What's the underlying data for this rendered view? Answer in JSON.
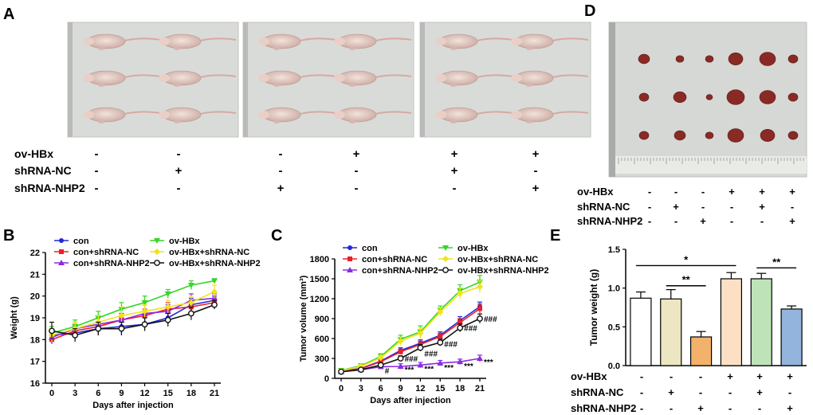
{
  "panels": {
    "a": {
      "letter": "A",
      "row_labels": [
        "ov-HBx",
        "shRNA-NC",
        "shRNA-NHP2"
      ],
      "columns": [
        [
          "-",
          "-",
          "-"
        ],
        [
          "-",
          "+",
          "-"
        ],
        [
          "-",
          "-",
          "+"
        ],
        [
          "+",
          "-",
          "-"
        ],
        [
          "+",
          "+",
          "-"
        ],
        [
          "+",
          "-",
          "+"
        ]
      ]
    },
    "d": {
      "letter": "D",
      "row_labels": [
        "ov-HBx",
        "shRNA-NC",
        "shRNA-NHP2"
      ],
      "columns": [
        [
          "-",
          "-",
          "-"
        ],
        [
          "-",
          "+",
          "-"
        ],
        [
          "-",
          "-",
          "+"
        ],
        [
          "+",
          "-",
          "-"
        ],
        [
          "+",
          "+",
          "-"
        ],
        [
          "+",
          "-",
          "+"
        ]
      ]
    },
    "b": {
      "letter": "B"
    },
    "c": {
      "letter": "C"
    },
    "e": {
      "letter": "E",
      "row_labels": [
        "ov-HBx",
        "shRNA-NC",
        "shRNA-NHP2"
      ],
      "columns": [
        [
          "-",
          "-",
          "-"
        ],
        [
          "-",
          "+",
          "-"
        ],
        [
          "-",
          "-",
          "+"
        ],
        [
          "+",
          "-",
          "-"
        ],
        [
          "+",
          "+",
          "-"
        ],
        [
          "+",
          "-",
          "+"
        ]
      ]
    }
  },
  "colors": {
    "con": "#1f2bd6",
    "con_shnc": "#e8202a",
    "con_shnhp2": "#8a2be2",
    "ovhbx": "#35d626",
    "ovhbx_shnc": "#f2e21a",
    "ovhbx_shnhp2": "#111111",
    "bar_fills": [
      "#ffffff",
      "#ece7c2",
      "#f2b26b",
      "#fde0c4",
      "#bfe3b8",
      "#93b4dc"
    ],
    "photo_bg": "#d9dbd8",
    "tumor": "#8a2a25"
  },
  "chart_data": [
    {
      "id": "B",
      "type": "line",
      "title": "",
      "xlabel": "Days after injection",
      "ylabel": "Weight (g)",
      "x": [
        0,
        3,
        6,
        9,
        12,
        15,
        18,
        21
      ],
      "xticks": [
        "0",
        "3",
        "6",
        "9",
        "12",
        "15",
        "18",
        "21"
      ],
      "yticks": [
        "16",
        "17",
        "18",
        "19",
        "20",
        "21",
        "22"
      ],
      "ylim": [
        16,
        22
      ],
      "legend": "top",
      "series": [
        {
          "key": "con",
          "name": "con",
          "values": [
            18.2,
            18.3,
            18.5,
            18.6,
            18.7,
            19.0,
            19.6,
            19.8
          ],
          "err": [
            0.3,
            0.3,
            0.3,
            0.4,
            0.3,
            0.3,
            0.3,
            0.2
          ]
        },
        {
          "key": "con_shnc",
          "name": "con+shRNA-NC",
          "values": [
            18.0,
            18.4,
            18.6,
            18.9,
            19.1,
            19.4,
            19.5,
            19.7
          ],
          "err": [
            0.2,
            0.3,
            0.4,
            0.3,
            0.3,
            0.3,
            0.3,
            0.2
          ]
        },
        {
          "key": "con_shnhp2",
          "name": "con+shRNA-NHP2",
          "values": [
            18.1,
            18.5,
            18.7,
            18.9,
            19.2,
            19.3,
            19.8,
            19.9
          ],
          "err": [
            0.3,
            0.3,
            0.4,
            0.3,
            0.4,
            0.3,
            0.3,
            0.2
          ]
        },
        {
          "key": "ovhbx",
          "name": "ov-HBx",
          "values": [
            18.3,
            18.6,
            19.0,
            19.4,
            19.7,
            20.1,
            20.5,
            20.7
          ],
          "err": [
            0.3,
            0.3,
            0.3,
            0.3,
            0.3,
            0.2,
            0.2,
            0.1
          ]
        },
        {
          "key": "ovhbx_shnc",
          "name": "ov-HBx+shRNA-NC",
          "values": [
            18.2,
            18.5,
            18.8,
            19.1,
            19.3,
            19.5,
            19.7,
            20.2
          ],
          "err": [
            0.3,
            0.3,
            0.3,
            0.4,
            0.3,
            0.3,
            0.3,
            0.3
          ]
        },
        {
          "key": "ovhbx_shnhp2",
          "name": "ov-HBx+shRNA-NHP2",
          "values": [
            18.4,
            18.2,
            18.5,
            18.5,
            18.7,
            18.9,
            19.2,
            19.6
          ],
          "err": [
            0.4,
            0.3,
            0.3,
            0.3,
            0.3,
            0.3,
            0.3,
            0.2
          ]
        }
      ]
    },
    {
      "id": "C",
      "type": "line",
      "title": "",
      "xlabel": "Days after injection",
      "ylabel": "Tumor volume (mm³)",
      "x": [
        0,
        3,
        6,
        9,
        12,
        15,
        18,
        21
      ],
      "xticks": [
        "0",
        "3",
        "6",
        "9",
        "12",
        "15",
        "18",
        "21"
      ],
      "yticks": [
        "0",
        "300",
        "600",
        "900",
        "1200",
        "1500",
        "1800"
      ],
      "ylim": [
        0,
        1800
      ],
      "legend": "top",
      "series": [
        {
          "key": "con",
          "name": "con",
          "values": [
            110,
            150,
            260,
            420,
            530,
            650,
            870,
            1080
          ],
          "err": [
            20,
            20,
            30,
            40,
            50,
            50,
            60,
            70
          ]
        },
        {
          "key": "con_shnc",
          "name": "con+shRNA-NC",
          "values": [
            105,
            145,
            250,
            400,
            510,
            630,
            840,
            1050
          ],
          "err": [
            20,
            20,
            30,
            40,
            50,
            50,
            60,
            70
          ]
        },
        {
          "key": "con_shnhp2",
          "name": "con+shRNA-NHP2",
          "values": [
            100,
            130,
            175,
            180,
            200,
            230,
            250,
            300
          ],
          "err": [
            15,
            20,
            25,
            40,
            40,
            40,
            40,
            50
          ]
        },
        {
          "key": "ovhbx",
          "name": "ov-HBx",
          "values": [
            120,
            190,
            330,
            590,
            700,
            1030,
            1320,
            1450
          ],
          "err": [
            20,
            25,
            40,
            60,
            90,
            60,
            90,
            100
          ]
        },
        {
          "key": "ovhbx_shnc",
          "name": "ov-HBx+shRNA-NC",
          "values": [
            115,
            180,
            310,
            560,
            680,
            1000,
            1280,
            1380
          ],
          "err": [
            20,
            25,
            40,
            60,
            80,
            60,
            80,
            90
          ]
        },
        {
          "key": "ovhbx_shnhp2",
          "name": "ov-HBx+shRNA-NHP2",
          "values": [
            100,
            130,
            200,
            300,
            460,
            540,
            760,
            900
          ],
          "err": [
            20,
            20,
            30,
            40,
            50,
            50,
            60,
            70
          ]
        }
      ],
      "annotations": [
        {
          "x": 6,
          "y": 120,
          "text": "#"
        },
        {
          "x": 9,
          "y": 300,
          "text": "###"
        },
        {
          "x": 9,
          "y": 140,
          "text": "***"
        },
        {
          "x": 12,
          "y": 380,
          "text": "###"
        },
        {
          "x": 12,
          "y": 150,
          "text": "***"
        },
        {
          "x": 15,
          "y": 520,
          "text": "###"
        },
        {
          "x": 15,
          "y": 170,
          "text": "***"
        },
        {
          "x": 18,
          "y": 760,
          "text": "###"
        },
        {
          "x": 18,
          "y": 190,
          "text": "***"
        },
        {
          "x": 21,
          "y": 900,
          "text": "###"
        },
        {
          "x": 21,
          "y": 250,
          "text": "***"
        }
      ]
    },
    {
      "id": "E",
      "type": "bar",
      "title": "",
      "xlabel": "",
      "ylabel": "Tumor weight (g)",
      "categories": [
        "con",
        "con+shRNA-NC",
        "con+shRNA-NHP2",
        "ov-HBx",
        "ov-HBx+shRNA-NC",
        "ov-HBx+shRNA-NHP2"
      ],
      "values": [
        0.87,
        0.86,
        0.37,
        1.12,
        1.12,
        0.73
      ],
      "err": [
        0.08,
        0.12,
        0.07,
        0.08,
        0.07,
        0.04
      ],
      "yticks": [
        "0.0",
        "0.5",
        "1.0",
        "1.5"
      ],
      "ylim": [
        0,
        1.5
      ],
      "brackets": [
        {
          "from": 0,
          "to": 3,
          "y": 1.29,
          "text": "*"
        },
        {
          "from": 1,
          "to": 2,
          "y": 1.03,
          "text": "**"
        },
        {
          "from": 4,
          "to": 5,
          "y": 1.26,
          "text": "**"
        }
      ]
    }
  ]
}
